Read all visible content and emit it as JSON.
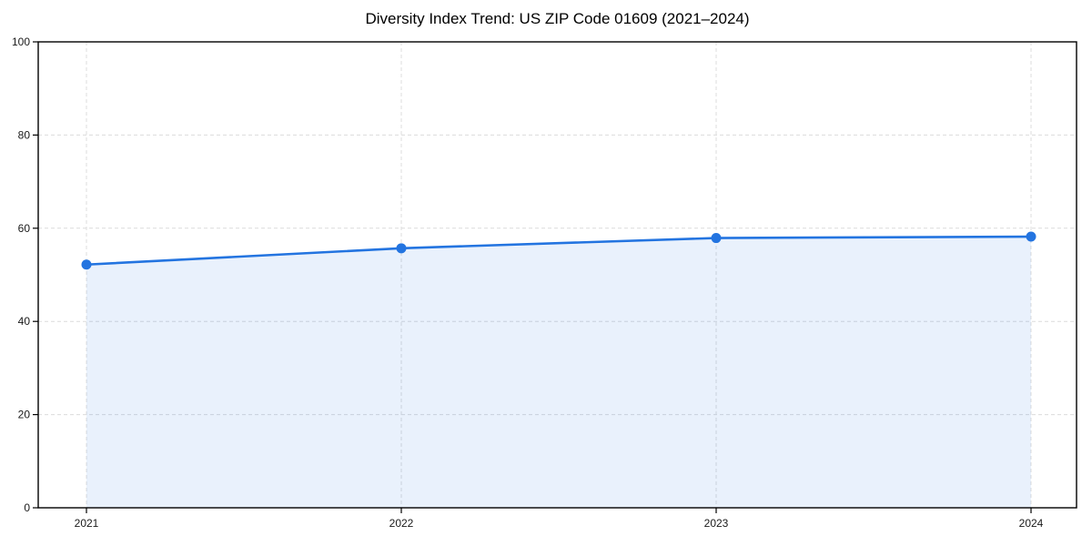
{
  "title": "Diversity Index Trend: US ZIP Code 01609 (2021–2024)",
  "chart_data": {
    "type": "area",
    "categories": [
      "2021",
      "2022",
      "2023",
      "2024"
    ],
    "series": [
      {
        "name": "Diversity Index",
        "values": [
          52.2,
          55.7,
          57.9,
          58.2
        ]
      }
    ],
    "title": "Diversity Index Trend: US ZIP Code 01609 (2021–2024)",
    "xlabel": "",
    "ylabel": "",
    "ylim": [
      0,
      100
    ],
    "yticks": [
      0,
      20,
      40,
      60,
      80,
      100
    ],
    "grid": true,
    "grid_style": "dashed",
    "legend": false,
    "markers": true
  },
  "colors": {
    "line": "#2374e0",
    "fill": "#2374e0",
    "fill_opacity": 0.1,
    "grid": "#dcdcdc",
    "spine": "#000000",
    "tick_text": "#1a1a1a",
    "title_text": "#000000",
    "background": "#ffffff"
  }
}
